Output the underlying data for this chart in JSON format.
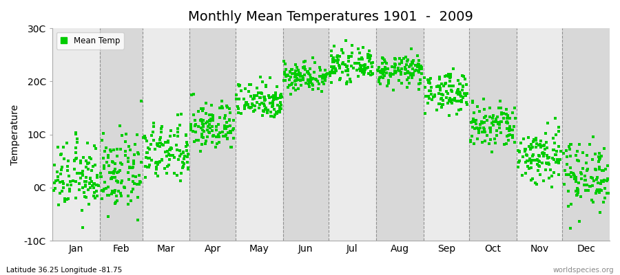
{
  "title": "Monthly Mean Temperatures 1901  -  2009",
  "ylabel": "Temperature",
  "ylim": [
    -10,
    30
  ],
  "yticks": [
    -10,
    0,
    10,
    20,
    30
  ],
  "ytick_labels": [
    "-10C",
    "0C",
    "10C",
    "20C",
    "30C"
  ],
  "months": [
    "Jan",
    "Feb",
    "Mar",
    "Apr",
    "May",
    "Jun",
    "Jul",
    "Aug",
    "Sep",
    "Oct",
    "Nov",
    "Dec"
  ],
  "month_days": [
    31,
    28,
    31,
    30,
    31,
    30,
    31,
    31,
    30,
    31,
    30,
    31
  ],
  "dot_color": "#00cc00",
  "dot_size": 5,
  "background_color": "#ffffff",
  "plot_bg_light": "#ebebeb",
  "plot_bg_dark": "#d8d8d8",
  "title_fontsize": 14,
  "axis_fontsize": 10,
  "legend_label": "Mean Temp",
  "footer_left": "Latitude 36.25 Longitude -81.75",
  "footer_right": "worldspecies.org",
  "monthly_mean_temps": [
    2.0,
    2.5,
    6.5,
    11.5,
    16.5,
    21.0,
    23.0,
    22.0,
    18.0,
    11.5,
    6.0,
    2.5
  ],
  "monthly_std_temps": [
    3.2,
    3.5,
    2.8,
    2.3,
    1.8,
    1.4,
    1.4,
    1.4,
    1.8,
    2.3,
    2.8,
    3.2
  ],
  "n_years": 109
}
